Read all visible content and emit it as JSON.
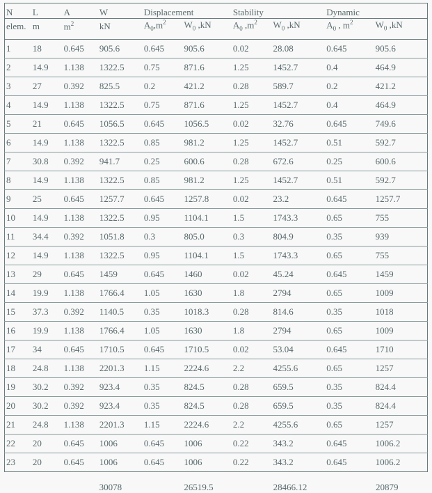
{
  "header": {
    "row1": [
      "N",
      "L",
      "A",
      "W",
      "Displacement",
      "",
      "Stability",
      "",
      "Dynamic",
      ""
    ],
    "row2": [
      "elem.",
      "m",
      "m²",
      "kN",
      "A₀,m²",
      "W₀ ,kN",
      "A₀ ,m²",
      "W₀ ,kN",
      "A₀ , m²",
      "W₀ ,kN"
    ]
  },
  "columns": [
    "N",
    "L",
    "A",
    "W",
    "d_A0",
    "d_W0",
    "s_A0",
    "s_W0",
    "y_A0",
    "y_W0"
  ],
  "rows": [
    [
      "1",
      "18",
      "0.645",
      "905.6",
      "0.645",
      "905.6",
      "0.02",
      "28.08",
      "0.645",
      "905.6"
    ],
    [
      "2",
      "14.9",
      "1.138",
      "1322.5",
      "0.75",
      "871.6",
      "1.25",
      "1452.7",
      "0.4",
      "464.9"
    ],
    [
      "3",
      "27",
      "0.392",
      "825.5",
      "0.2",
      "421.2",
      "0.28",
      "589.7",
      "0.2",
      "421.2"
    ],
    [
      "4",
      "14.9",
      "1.138",
      "1322.5",
      "0.75",
      "871.6",
      "1.25",
      "1452.7",
      "0.4",
      "464.9"
    ],
    [
      "5",
      "21",
      "0.645",
      "1056.5",
      "0.645",
      "1056.5",
      "0.02",
      "32.76",
      "0.645",
      "749.6"
    ],
    [
      "6",
      "14.9",
      "1.138",
      "1322.5",
      "0.85",
      "981.2",
      "1.25",
      "1452.7",
      "0.51",
      "592.7"
    ],
    [
      "7",
      "30.8",
      "0.392",
      "941.7",
      "0.25",
      "600.6",
      "0.28",
      "672.6",
      "0.25",
      "600.6"
    ],
    [
      "8",
      "14.9",
      "1.138",
      "1322.5",
      "0.85",
      "981.2",
      "1.25",
      "1452.7",
      "0.51",
      "592.7"
    ],
    [
      "9",
      "25",
      "0.645",
      "1257.7",
      "0.645",
      "1257.8",
      "0.02",
      "23.2",
      "0.645",
      "1257.7"
    ],
    [
      "10",
      "14.9",
      "1.138",
      "1322.5",
      "0.95",
      "1104.1",
      "1.5",
      "1743.3",
      "0.65",
      "755"
    ],
    [
      "11",
      "34.4",
      "0.392",
      "1051.8",
      "0.3",
      "805.0",
      "0.3",
      "804.9",
      "0.35",
      "939"
    ],
    [
      "12",
      "14.9",
      "1.138",
      "1322.5",
      "0.95",
      "1104.1",
      "1.5",
      "1743.3",
      "0.65",
      "755"
    ],
    [
      "13",
      "29",
      "0.645",
      "1459",
      "0.645",
      "1460",
      "0.02",
      "45.24",
      "0.645",
      "1459"
    ],
    [
      "14",
      "19.9",
      "1.138",
      "1766.4",
      "1.05",
      "1630",
      "1.8",
      "2794",
      "0.65",
      "1009"
    ],
    [
      "15",
      "37.3",
      "0.392",
      "1140.5",
      "0.35",
      "1018.3",
      "0.28",
      "814.6",
      "0.35",
      "1018"
    ],
    [
      "16",
      "19.9",
      "1.138",
      "1766.4",
      "1.05",
      "1630",
      "1.8",
      "2794",
      "0.65",
      "1009"
    ],
    [
      "17",
      "34",
      "0.645",
      "1710.5",
      "0.645",
      "1710.5",
      "0.02",
      "53.04",
      "0.645",
      "1710"
    ],
    [
      "18",
      "24.8",
      "1.138",
      "2201.3",
      "1.15",
      "2224.6",
      "2.2",
      "4255.6",
      "0.65",
      "1257"
    ],
    [
      "19",
      "30.2",
      "0.392",
      "923.4",
      "0.35",
      "824.5",
      "0.28",
      "659.5",
      "0.35",
      "824.4"
    ],
    [
      "20",
      "30.2",
      "0.392",
      "923.4",
      "0.35",
      "824.5",
      "0.28",
      "659.5",
      "0.35",
      "824.4"
    ],
    [
      "21",
      "24.8",
      "1.138",
      "2201.3",
      "1.15",
      "2224.6",
      "2.2",
      "4255.6",
      "0.65",
      "1257"
    ],
    [
      "22",
      "20",
      "0.645",
      "1006",
      "0.645",
      "1006",
      "0.22",
      "343.2",
      "0.645",
      "1006.2"
    ],
    [
      "23",
      "20",
      "0.645",
      "1006",
      "0.645",
      "1006",
      "0.22",
      "343.2",
      "0.645",
      "1006.2"
    ]
  ],
  "totals": [
    "",
    "",
    "",
    "30078",
    "",
    "26519.5",
    "",
    "28466.12",
    "",
    "20879"
  ]
}
